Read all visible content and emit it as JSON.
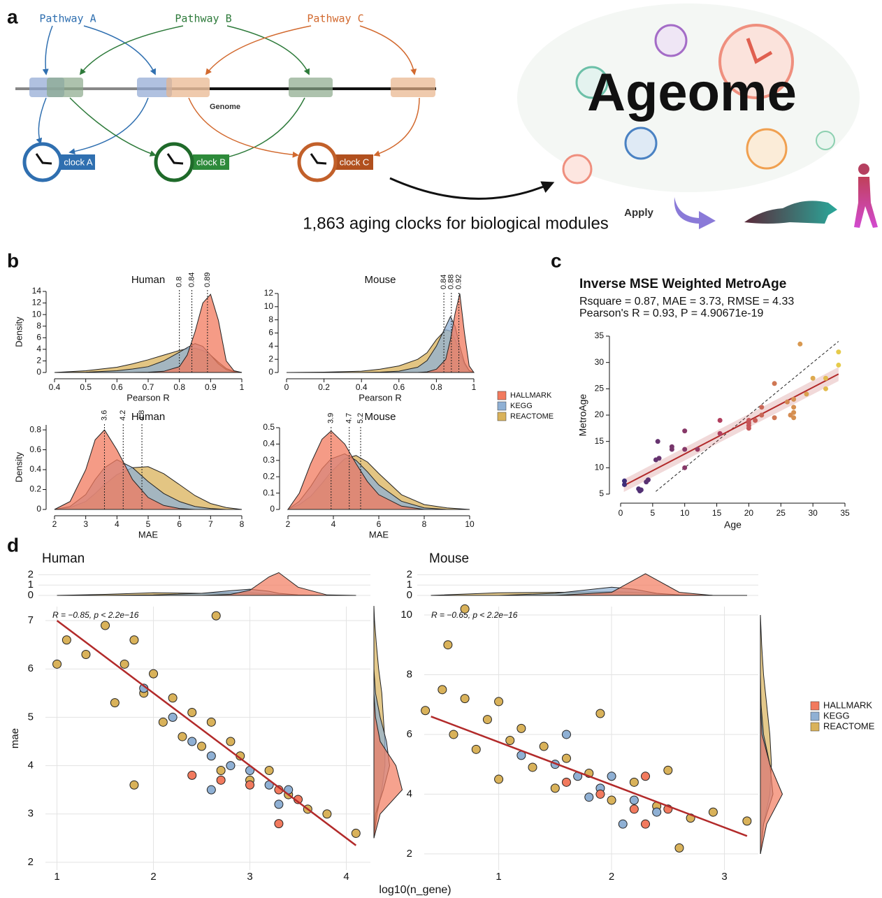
{
  "panel_labels": [
    "a",
    "b",
    "c",
    "d"
  ],
  "panel_a": {
    "pathways": [
      "Pathway A",
      "Pathway B",
      "Pathway C"
    ],
    "genome": "Genome",
    "clocks": [
      "clock A",
      "clock B",
      "clock C"
    ],
    "title": "Ageome",
    "caption": "1,863 aging clocks for biological modules",
    "apply": "Apply"
  },
  "chart_data": [
    {
      "type": "area",
      "title": "Human",
      "xlabel": "Pearson R",
      "ylabel": "Density",
      "x": [
        0.4,
        0.5,
        0.6,
        0.65,
        0.7,
        0.75,
        0.8,
        0.825,
        0.85,
        0.875,
        0.9,
        0.925,
        0.95,
        0.975,
        1
      ],
      "series": [
        {
          "name": "HALLMARK",
          "color": "#f27a5e",
          "values": [
            0,
            0,
            0,
            0,
            0.05,
            0.2,
            1,
            3,
            7,
            12,
            13.5,
            9,
            2,
            0.3,
            0
          ]
        },
        {
          "name": "KEGG",
          "color": "#8fb0d4",
          "values": [
            0,
            0.05,
            0.3,
            0.6,
            1,
            2,
            3.5,
            4.3,
            5,
            4.5,
            3,
            1.5,
            0.5,
            0.1,
            0
          ]
        },
        {
          "name": "REACTOME",
          "color": "#d9b25a",
          "values": [
            0,
            0.3,
            0.9,
            1.5,
            2.2,
            3,
            3.8,
            4.1,
            4.2,
            3.8,
            3,
            1.8,
            0.7,
            0.2,
            0
          ]
        }
      ],
      "vlines": [
        0.8,
        0.84,
        0.89
      ],
      "xlim": [
        0.4,
        1
      ],
      "xticks": [
        0.4,
        0.5,
        0.6,
        0.7,
        0.8,
        0.9,
        1
      ],
      "ylim": [
        0,
        14
      ],
      "yticks": [
        0,
        2,
        4,
        6,
        8,
        10,
        12,
        14
      ]
    },
    {
      "type": "area",
      "title": "Mouse",
      "xlabel": "Pearson R",
      "x": [
        0,
        0.2,
        0.4,
        0.5,
        0.6,
        0.7,
        0.75,
        0.8,
        0.85,
        0.875,
        0.9,
        0.925,
        0.95,
        0.975,
        1
      ],
      "series": [
        {
          "name": "HALLMARK",
          "color": "#f27a5e",
          "values": [
            0,
            0,
            0,
            0,
            0,
            0,
            0.1,
            0.5,
            2,
            5,
            9,
            12,
            6,
            1,
            0
          ]
        },
        {
          "name": "KEGG",
          "color": "#8fb0d4",
          "values": [
            0,
            0,
            0,
            0.05,
            0.2,
            0.8,
            1.8,
            4,
            7,
            8.5,
            7,
            4,
            1.5,
            0.3,
            0
          ]
        },
        {
          "name": "REACTOME",
          "color": "#d9b25a",
          "values": [
            0,
            0.05,
            0.2,
            0.5,
            1,
            2,
            3,
            5,
            6.5,
            6.3,
            5,
            3,
            1.2,
            0.3,
            0
          ]
        }
      ],
      "vlines": [
        0.84,
        0.88,
        0.92
      ],
      "legend": "right",
      "xlim": [
        0,
        1
      ],
      "xticks": [
        0,
        0.2,
        0.4,
        0.6,
        0.8,
        1
      ],
      "ylim": [
        0,
        12
      ],
      "yticks": [
        0,
        2,
        4,
        6,
        8,
        10,
        12
      ]
    },
    {
      "type": "area",
      "title": "Human",
      "xlabel": "MAE",
      "ylabel": "Density",
      "x": [
        2,
        2.5,
        3,
        3.3,
        3.6,
        4,
        4.5,
        5,
        5.5,
        6,
        6.5,
        7,
        7.5,
        8
      ],
      "series": [
        {
          "name": "HALLMARK",
          "color": "#f27a5e",
          "values": [
            0,
            0.08,
            0.4,
            0.7,
            0.8,
            0.6,
            0.3,
            0.12,
            0.04,
            0.01,
            0,
            0,
            0,
            0
          ]
        },
        {
          "name": "KEGG",
          "color": "#8fb0d4",
          "values": [
            0,
            0.03,
            0.15,
            0.3,
            0.42,
            0.5,
            0.42,
            0.28,
            0.16,
            0.08,
            0.03,
            0.01,
            0,
            0
          ]
        },
        {
          "name": "REACTOME",
          "color": "#d9b25a",
          "values": [
            0,
            0.02,
            0.08,
            0.16,
            0.25,
            0.35,
            0.42,
            0.43,
            0.36,
            0.25,
            0.14,
            0.06,
            0.02,
            0
          ]
        }
      ],
      "vlines": [
        3.6,
        4.2,
        4.8
      ],
      "xlim": [
        2,
        8
      ],
      "xticks": [
        2,
        3,
        4,
        5,
        6,
        7,
        8
      ],
      "ylim": [
        0,
        0.85
      ],
      "yticks": [
        0,
        0.2,
        0.4,
        0.6,
        0.8
      ]
    },
    {
      "type": "area",
      "title": "Mouse",
      "xlabel": "MAE",
      "x": [
        2,
        2.5,
        3,
        3.5,
        3.9,
        4.5,
        5,
        5.5,
        6,
        7,
        8,
        9,
        10
      ],
      "series": [
        {
          "name": "HALLMARK",
          "color": "#f27a5e",
          "values": [
            0,
            0.1,
            0.28,
            0.43,
            0.48,
            0.4,
            0.28,
            0.17,
            0.09,
            0.02,
            0,
            0,
            0
          ]
        },
        {
          "name": "KEGG",
          "color": "#8fb0d4",
          "values": [
            0,
            0.05,
            0.14,
            0.25,
            0.31,
            0.34,
            0.3,
            0.23,
            0.15,
            0.05,
            0.01,
            0,
            0
          ]
        },
        {
          "name": "REACTOME",
          "color": "#d9b25a",
          "values": [
            0,
            0.03,
            0.08,
            0.16,
            0.23,
            0.31,
            0.33,
            0.29,
            0.22,
            0.09,
            0.03,
            0.01,
            0
          ]
        }
      ],
      "vlines": [
        3.9,
        4.7,
        5.2
      ],
      "xlim": [
        2,
        10
      ],
      "xticks": [
        2,
        4,
        6,
        8,
        10
      ],
      "ylim": [
        0,
        0.5
      ],
      "yticks": [
        0,
        0.1,
        0.2,
        0.3,
        0.4,
        0.5
      ]
    },
    {
      "type": "scatter",
      "title": "Inverse MSE Weighted MetroAge",
      "subtitle": [
        "Rsquare = 0.87, MAE = 3.73, RMSE = 4.33",
        "Pearson's R = 0.93, P = 4.90671e-19"
      ],
      "xlabel": "Age",
      "ylabel": "MetroAge",
      "color_scale": [
        "#3a2d7a",
        "#c0405a",
        "#e8d34a"
      ],
      "series": [
        {
          "x": [
            0.6,
            0.6,
            2.8,
            3,
            3.2,
            4,
            4.3,
            5.5,
            5.8,
            6,
            8,
            8,
            10,
            10,
            10,
            12,
            15.5,
            15.5,
            20,
            20,
            20,
            20,
            21,
            22,
            22,
            24,
            24,
            26,
            26.5,
            27,
            27,
            27,
            27,
            28,
            29,
            30,
            32,
            32,
            34,
            34
          ],
          "values": [
            7.5,
            6.8,
            6,
            5.6,
            5.8,
            7.3,
            7.7,
            11.5,
            15,
            11.8,
            14,
            13.5,
            17,
            10,
            13.5,
            13.5,
            19,
            16.5,
            19,
            18,
            17.5,
            18.5,
            19,
            21.5,
            20,
            26,
            19.5,
            22.5,
            20,
            21.5,
            20.5,
            19.5,
            23,
            33.5,
            24,
            27,
            27,
            25,
            32,
            29.5
          ]
        }
      ],
      "fit_line": {
        "x": [
          0.5,
          34
        ],
        "values": [
          6.6,
          27.8
        ],
        "color": "#b22a2a"
      },
      "identity_line": {
        "x": [
          5.5,
          34
        ],
        "values": [
          5.5,
          34
        ]
      },
      "xlim": [
        0,
        35
      ],
      "xticks": [
        0,
        5,
        10,
        15,
        20,
        25,
        30,
        35
      ],
      "ylim": [
        5,
        35
      ],
      "yticks": [
        5,
        10,
        15,
        20,
        25,
        30,
        35
      ]
    },
    {
      "type": "scatter",
      "title": "Human",
      "xlabel": "log10(n_gene)",
      "ylabel": "mae",
      "annotation": "R = −0.85, p < 2.2e−16",
      "grid": true,
      "series": [
        {
          "name": "HALLMARK",
          "color": "#f27a5e",
          "x": [
            2.4,
            2.7,
            3.0,
            3.3,
            3.5,
            3.3
          ],
          "values": [
            3.8,
            3.7,
            3.6,
            3.5,
            3.3,
            2.8
          ]
        },
        {
          "name": "KEGG",
          "color": "#8fb0d4",
          "x": [
            1.9,
            2.2,
            2.4,
            2.6,
            2.8,
            3.0,
            3.2,
            3.4,
            2.6,
            3.3
          ],
          "values": [
            5.6,
            5.0,
            4.5,
            4.2,
            4.0,
            3.9,
            3.6,
            3.5,
            3.5,
            3.2
          ]
        },
        {
          "name": "REACTOME",
          "color": "#d9b25a",
          "x": [
            1,
            1.1,
            1.3,
            1.5,
            1.6,
            1.7,
            1.8,
            1.9,
            2,
            2.1,
            2.2,
            2.3,
            2.4,
            2.5,
            2.6,
            2.7,
            2.8,
            2.9,
            3,
            3.2,
            3.4,
            3.6,
            3.8,
            4.1,
            2.65,
            1.8
          ],
          "values": [
            6.1,
            6.6,
            6.3,
            6.9,
            5.3,
            6.1,
            6.6,
            5.5,
            5.9,
            4.9,
            5.4,
            4.6,
            5.1,
            4.4,
            4.9,
            3.9,
            4.5,
            4.2,
            3.7,
            3.9,
            3.4,
            3.1,
            3.0,
            2.6,
            7.1,
            3.6
          ]
        }
      ],
      "fit_line": {
        "x": [
          1,
          4.1
        ],
        "values": [
          7,
          2.35
        ],
        "color": "#b22a2a"
      },
      "top_density": {
        "x": [
          1.0,
          1.5,
          2.0,
          2.5,
          2.8,
          3.0,
          3.2,
          3.3,
          3.5,
          3.8,
          4.1
        ],
        "ylim": [
          0,
          2.5
        ],
        "yticks": [
          0,
          1,
          2
        ],
        "series": [
          {
            "values": [
              0,
              0,
              0,
              0,
              0.1,
              0.5,
              1.8,
              2.2,
              0.8,
              0.05,
              0
            ]
          },
          {
            "values": [
              0,
              0,
              0.05,
              0.2,
              0.45,
              0.6,
              0.4,
              0.2,
              0.05,
              0,
              0
            ]
          },
          {
            "values": [
              0,
              0.1,
              0.25,
              0.2,
              0.25,
              0.25,
              0.15,
              0.1,
              0.03,
              0,
              0
            ]
          }
        ]
      },
      "right_density": {
        "y": [
          2.5,
          3,
          3.5,
          4,
          4.5,
          5,
          5.5,
          6,
          6.5,
          7,
          7.3
        ],
        "xlim": [
          0,
          1
        ],
        "series": [
          {
            "values": [
              0,
              0.2,
              0.9,
              0.7,
              0.2,
              0.05,
              0,
              0,
              0,
              0,
              0
            ]
          },
          {
            "values": [
              0,
              0.05,
              0.3,
              0.5,
              0.4,
              0.2,
              0.05,
              0,
              0,
              0,
              0
            ]
          },
          {
            "values": [
              0,
              0.1,
              0.25,
              0.35,
              0.35,
              0.3,
              0.25,
              0.15,
              0.08,
              0.02,
              0
            ]
          }
        ]
      },
      "xlim": [
        0.88,
        4.25
      ],
      "xticks": [
        1,
        2,
        3,
        4
      ],
      "ylim": [
        1.84,
        7.29
      ],
      "yticks": [
        2,
        3,
        4,
        5,
        6,
        7
      ]
    },
    {
      "type": "scatter",
      "title": "Mouse",
      "annotation": "R = −0.65, p < 2.2e−16",
      "grid": true,
      "legend": "right",
      "series": [
        {
          "name": "HALLMARK",
          "color": "#f27a5e",
          "x": [
            1.6,
            1.9,
            2.2,
            2.3,
            2.3,
            2.5
          ],
          "values": [
            4.4,
            4.0,
            3.5,
            4.6,
            3.0,
            3.5
          ]
        },
        {
          "name": "KEGG",
          "color": "#8fb0d4",
          "x": [
            1.2,
            1.5,
            1.7,
            1.9,
            2.0,
            2.2,
            1.8,
            2.1,
            2.4,
            1.6
          ],
          "values": [
            5.3,
            5.0,
            4.6,
            4.2,
            4.6,
            3.8,
            3.9,
            3.0,
            3.4,
            6.0
          ]
        },
        {
          "name": "REACTOME",
          "color": "#d9b25a",
          "x": [
            0.35,
            0.5,
            0.55,
            0.6,
            0.7,
            0.7,
            0.8,
            0.9,
            1,
            1,
            1.1,
            1.2,
            1.3,
            1.4,
            1.5,
            1.6,
            1.8,
            1.9,
            2,
            2.2,
            2.4,
            2.5,
            2.7,
            2.9,
            3.2,
            2.6
          ],
          "values": [
            6.8,
            7.5,
            9,
            6,
            7.2,
            10.2,
            5.5,
            6.5,
            7.1,
            4.5,
            5.8,
            6.2,
            4.9,
            5.6,
            4.2,
            5.2,
            4.7,
            6.7,
            3.8,
            4.4,
            3.6,
            4.8,
            3.2,
            3.4,
            3.1,
            2.2
          ]
        }
      ],
      "fit_line": {
        "x": [
          0.4,
          3.2
        ],
        "values": [
          6.6,
          2.6
        ],
        "color": "#b22a2a"
      },
      "top_density": {
        "x": [
          0.4,
          1,
          1.5,
          2,
          2.2,
          2.3,
          2.4,
          2.6,
          2.9,
          3.2
        ],
        "ylim": [
          0,
          2.5
        ],
        "yticks": [
          0,
          1,
          2
        ],
        "series": [
          {
            "values": [
              0,
              0,
              0,
              0.3,
              1.5,
              2.1,
              1.5,
              0.3,
              0,
              0
            ]
          },
          {
            "values": [
              0,
              0,
              0.2,
              0.8,
              0.6,
              0.4,
              0.2,
              0.05,
              0,
              0
            ]
          },
          {
            "values": [
              0,
              0.25,
              0.3,
              0.35,
              0.3,
              0.25,
              0.15,
              0.05,
              0,
              0
            ]
          }
        ]
      },
      "right_density": {
        "y": [
          2,
          3,
          4,
          5,
          6,
          7,
          8,
          9,
          10
        ],
        "xlim": [
          0,
          1
        ],
        "series": [
          {
            "values": [
              0,
              0.2,
              0.7,
              0.3,
              0.05,
              0,
              0,
              0,
              0
            ]
          },
          {
            "values": [
              0,
              0.1,
              0.4,
              0.3,
              0.1,
              0.02,
              0,
              0,
              0
            ]
          },
          {
            "values": [
              0,
              0.1,
              0.3,
              0.35,
              0.3,
              0.2,
              0.1,
              0.04,
              0
            ]
          }
        ]
      },
      "xlim": [
        0.34,
        3.3
      ],
      "xticks": [
        1,
        2,
        3
      ],
      "ylim": [
        1.46,
        10.28
      ],
      "yticks": [
        2,
        4,
        6,
        8,
        10
      ]
    }
  ]
}
